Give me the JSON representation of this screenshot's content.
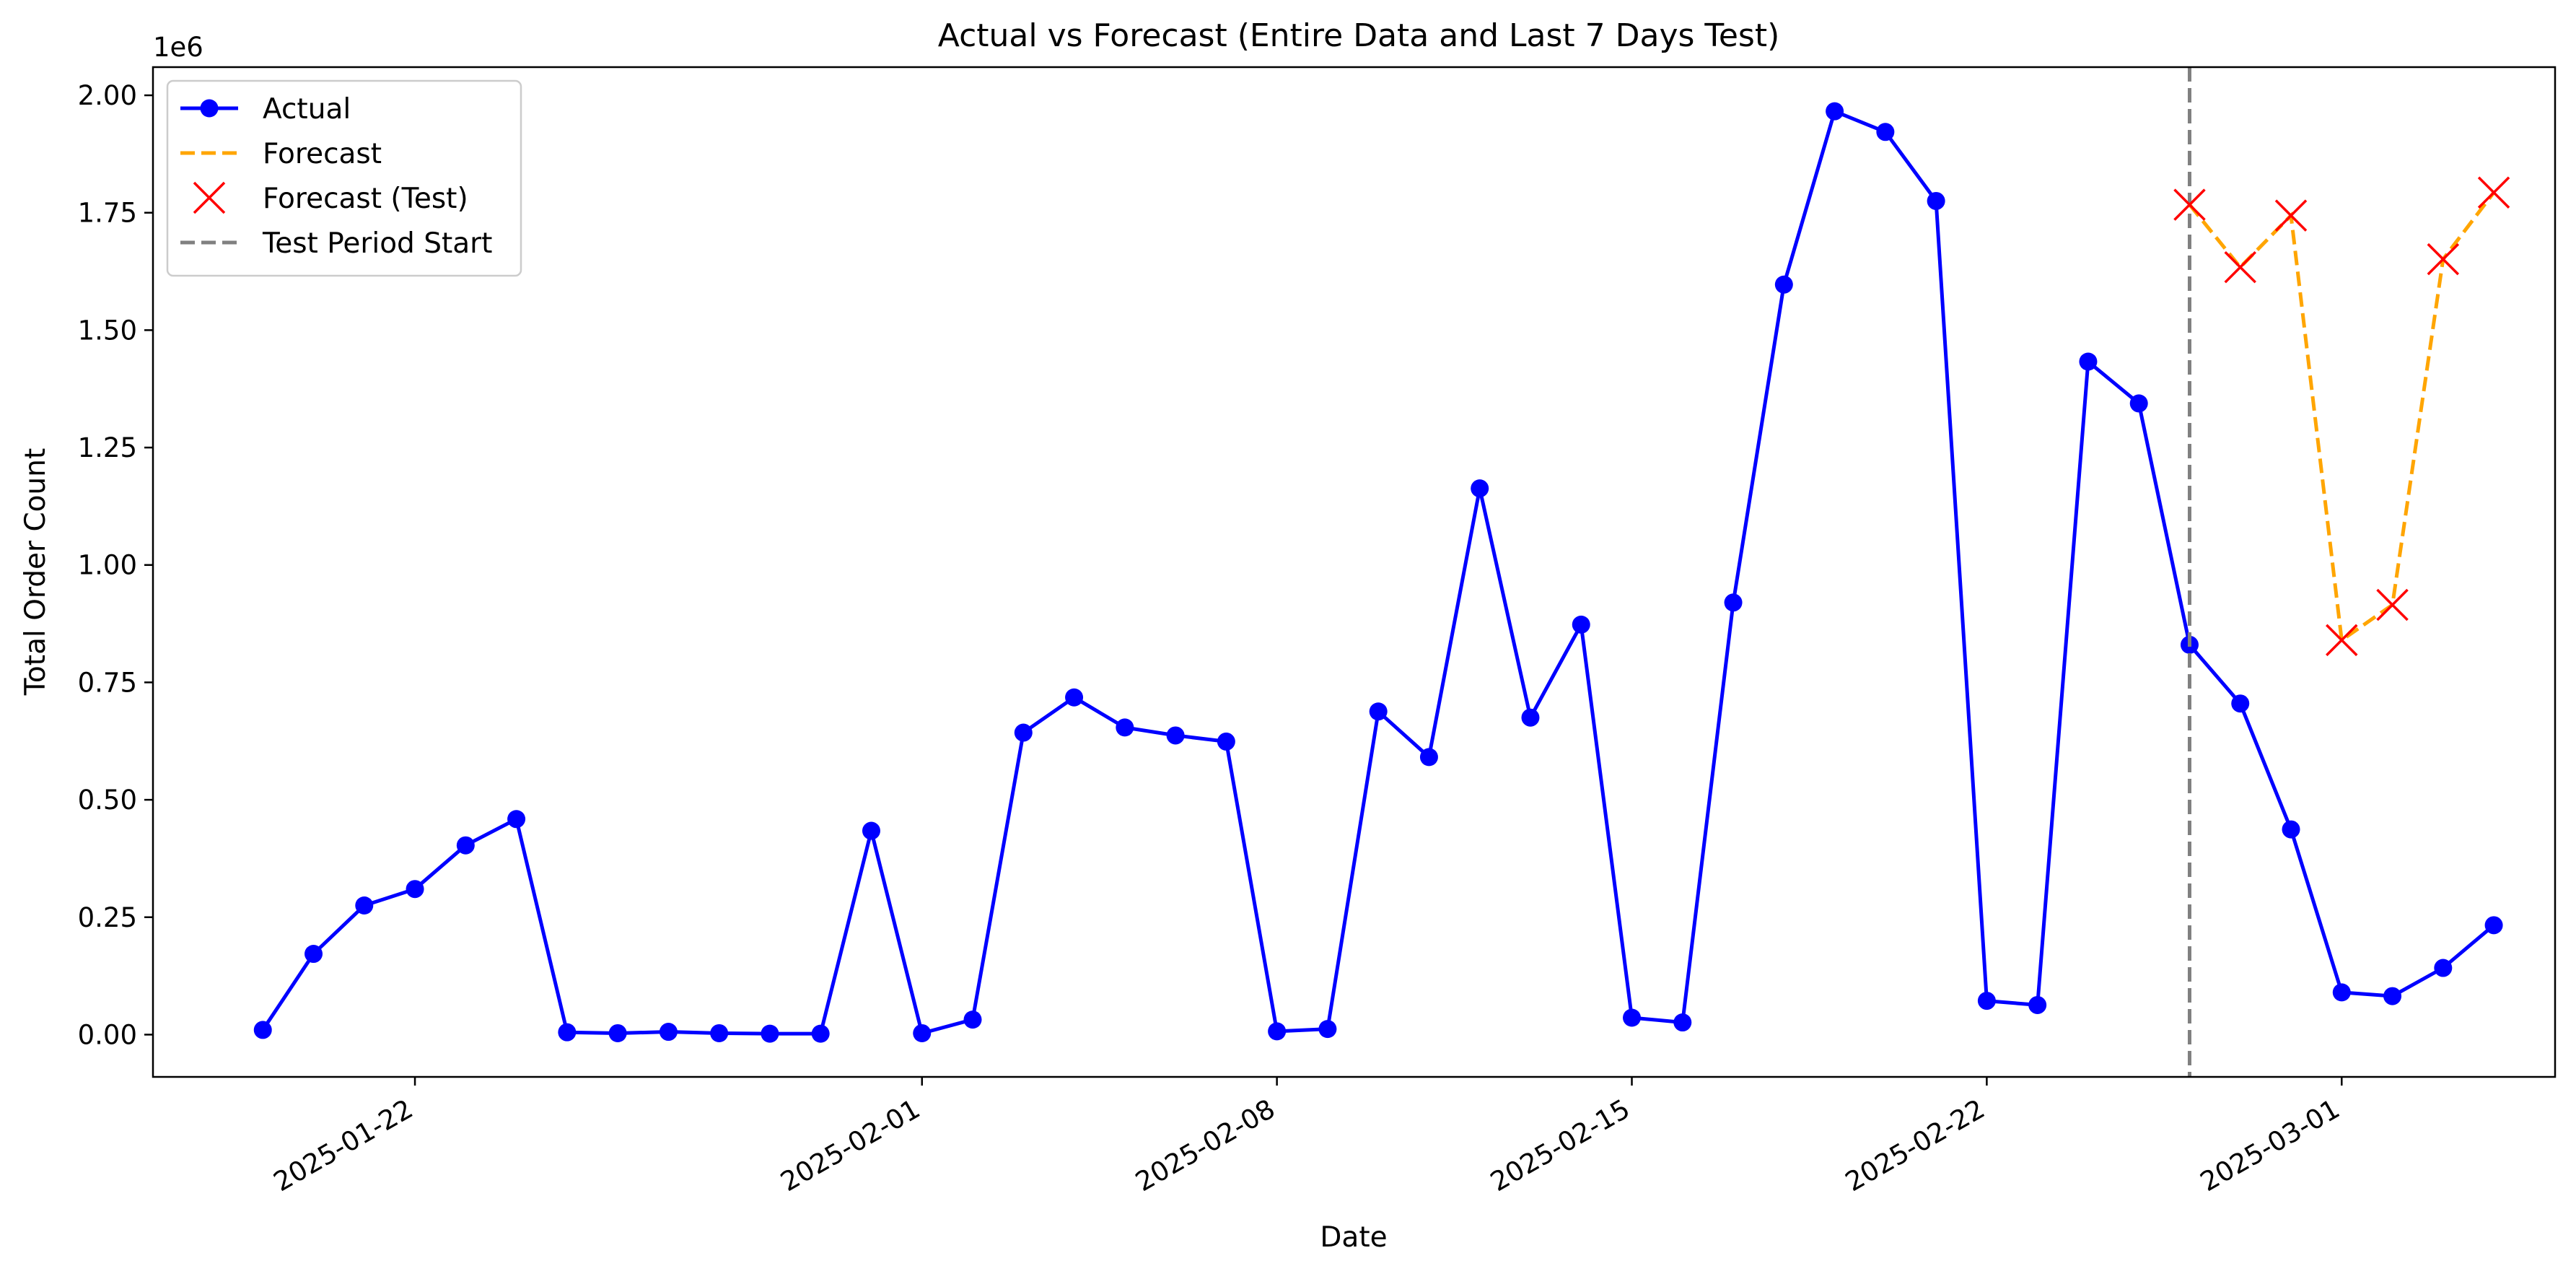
{
  "chart_data": {
    "type": "line",
    "title": "Actual vs Forecast (Entire Data and Last 7 Days Test)",
    "xlabel": "Date",
    "ylabel": "Total Order Count",
    "y_offset_label": "1e6",
    "y_scale": 1000000,
    "ylim": [
      -90000,
      2060000
    ],
    "xlim": [
      "2025-01-16T20:00",
      "2025-03-05T05:00"
    ],
    "x_ticks": [
      "2025-01-22",
      "2025-02-01",
      "2025-02-08",
      "2025-02-15",
      "2025-02-22",
      "2025-03-01"
    ],
    "y_ticks": [
      0,
      250000,
      500000,
      750000,
      1000000,
      1250000,
      1500000,
      1750000,
      2000000
    ],
    "y_tick_labels": [
      "0.00",
      "0.25",
      "0.50",
      "0.75",
      "1.00",
      "1.25",
      "1.50",
      "1.75",
      "2.00"
    ],
    "grid": false,
    "legend_position": "top-left",
    "legend": [
      {
        "name": "Actual",
        "style": "line-circle",
        "color": "#0000ff"
      },
      {
        "name": "Forecast",
        "style": "dashed",
        "color": "#ffa500"
      },
      {
        "name": "Forecast (Test)",
        "style": "x-marker",
        "color": "#ff0000"
      },
      {
        "name": "Test Period Start",
        "style": "dashed",
        "color": "#808080"
      }
    ],
    "series": [
      {
        "name": "Actual",
        "color": "#0000ff",
        "x": [
          "2025-01-19",
          "2025-01-20",
          "2025-01-21",
          "2025-01-22",
          "2025-01-23",
          "2025-01-24",
          "2025-01-25",
          "2025-01-26",
          "2025-01-27",
          "2025-01-28",
          "2025-01-29",
          "2025-01-30",
          "2025-01-31",
          "2025-02-01",
          "2025-02-02",
          "2025-02-03",
          "2025-02-04",
          "2025-02-05",
          "2025-02-06",
          "2025-02-07",
          "2025-02-08",
          "2025-02-09",
          "2025-02-10",
          "2025-02-11",
          "2025-02-12",
          "2025-02-13",
          "2025-02-14",
          "2025-02-15",
          "2025-02-16",
          "2025-02-17",
          "2025-02-18",
          "2025-02-19",
          "2025-02-20",
          "2025-02-21",
          "2025-02-22",
          "2025-02-23",
          "2025-02-24",
          "2025-02-25",
          "2025-02-26",
          "2025-02-27",
          "2025-02-28",
          "2025-03-01",
          "2025-03-02",
          "2025-03-03",
          "2025-03-04"
        ],
        "y": [
          10000,
          172000,
          275000,
          310000,
          403000,
          459000,
          5000,
          3000,
          6000,
          3000,
          2000,
          2000,
          434000,
          3000,
          32000,
          643000,
          718000,
          654000,
          637000,
          624000,
          7000,
          12000,
          688000,
          591000,
          1163000,
          675000,
          873000,
          36000,
          26000,
          920000,
          1597000,
          1966000,
          1922000,
          1775000,
          72000,
          63000,
          1433000,
          1344000,
          830000,
          705000,
          437000,
          90000,
          82000,
          142000,
          233000
        ]
      },
      {
        "name": "Forecast",
        "color": "#ffa500",
        "x": [
          "2025-02-26",
          "2025-02-27",
          "2025-02-28",
          "2025-03-01",
          "2025-03-02",
          "2025-03-03",
          "2025-03-04"
        ],
        "y": [
          1767000,
          1634000,
          1744000,
          840000,
          915000,
          1651000,
          1793000
        ]
      },
      {
        "name": "Forecast (Test)",
        "color": "#ff0000",
        "x": [
          "2025-02-26",
          "2025-02-27",
          "2025-02-28",
          "2025-03-01",
          "2025-03-02",
          "2025-03-03",
          "2025-03-04"
        ],
        "y": [
          1767000,
          1634000,
          1744000,
          840000,
          915000,
          1651000,
          1793000
        ]
      }
    ],
    "vlines": [
      {
        "name": "Test Period Start",
        "x": "2025-02-26",
        "color": "#808080"
      }
    ]
  }
}
